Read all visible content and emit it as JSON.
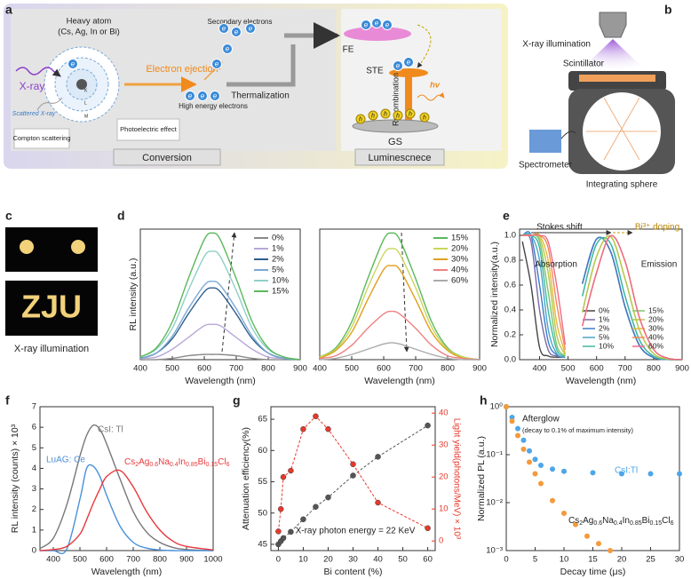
{
  "panel_labels": [
    "a",
    "b",
    "c",
    "d",
    "e",
    "f",
    "g",
    "h"
  ],
  "panel_a": {
    "heavy_atom": "Heavy atom",
    "heavy_atom_list": "(Cs, Ag, In or Bi)",
    "xray": "X-ray",
    "scattered": "Scattered X-ray",
    "compton": "Compton scattering",
    "photoelectric": "Photoelectric effect",
    "ejection": "Electron ejection",
    "high_energy": "High energy electrons",
    "secondary": "Secondary electrons",
    "thermalization": "Thermalization",
    "fe": "FE",
    "ste": "STE",
    "recombination": "Recombination",
    "hv": "hv",
    "gs": "GS",
    "conversion": "Conversion",
    "luminescence": "Luminescnece",
    "shells": [
      "K",
      "L",
      "M"
    ],
    "electron": "e",
    "hole": "h"
  },
  "panel_b": {
    "illumination": "X-ray illumination",
    "scintillator": "Scintillator",
    "spectrometer": "Spectrometer",
    "sphere": "Integrating sphere"
  },
  "panel_c": {
    "letters": "ZJU",
    "caption": "X-ray illumination"
  },
  "chart_data": [
    {
      "type": "line",
      "smooth": true,
      "xlabel": "Wavelength (nm)",
      "ylabel": "RL intensity (a.u.)",
      "xlim": [
        400,
        900
      ],
      "xticks": [
        400,
        500,
        600,
        700,
        800,
        900
      ],
      "ylim": [
        0,
        1
      ],
      "legend": "upper right",
      "x": [
        400,
        450,
        500,
        550,
        600,
        625,
        650,
        700,
        750,
        800,
        850,
        900
      ],
      "series": [
        {
          "name": "0%",
          "color": "#8a8a8a",
          "values": [
            0.0,
            0.0,
            0.01,
            0.03,
            0.04,
            0.04,
            0.04,
            0.03,
            0.01,
            0.0,
            0.0,
            0.0
          ]
        },
        {
          "name": "1%",
          "color": "#b9a7d8",
          "values": [
            0.01,
            0.02,
            0.08,
            0.17,
            0.26,
            0.27,
            0.26,
            0.17,
            0.08,
            0.02,
            0.01,
            0.0
          ]
        },
        {
          "name": "2%",
          "color": "#2e5e8e",
          "values": [
            0.01,
            0.05,
            0.16,
            0.35,
            0.52,
            0.55,
            0.52,
            0.35,
            0.16,
            0.05,
            0.01,
            0.0
          ]
        },
        {
          "name": "5%",
          "color": "#7ba7d4",
          "values": [
            0.01,
            0.05,
            0.18,
            0.39,
            0.57,
            0.6,
            0.57,
            0.39,
            0.18,
            0.05,
            0.01,
            0.0
          ]
        },
        {
          "name": "10%",
          "color": "#8fd0c8",
          "values": [
            0.02,
            0.08,
            0.24,
            0.53,
            0.79,
            0.83,
            0.79,
            0.53,
            0.24,
            0.08,
            0.02,
            0.0
          ]
        },
        {
          "name": "15%",
          "color": "#5cb85c",
          "values": [
            0.02,
            0.09,
            0.29,
            0.62,
            0.92,
            0.97,
            0.92,
            0.62,
            0.29,
            0.09,
            0.02,
            0.0
          ]
        }
      ]
    },
    {
      "type": "line",
      "smooth": true,
      "xlabel": "Wavelength (nm)",
      "xlim": [
        400,
        900
      ],
      "xticks": [
        400,
        500,
        600,
        700,
        800,
        900
      ],
      "ylim": [
        0,
        1
      ],
      "legend": "upper right",
      "x": [
        400,
        450,
        500,
        550,
        600,
        625,
        650,
        700,
        750,
        800,
        850,
        900
      ],
      "series": [
        {
          "name": "15%",
          "color": "#5cb85c",
          "values": [
            0.02,
            0.09,
            0.29,
            0.62,
            0.92,
            0.97,
            0.92,
            0.62,
            0.29,
            0.09,
            0.02,
            0.0
          ]
        },
        {
          "name": "20%",
          "color": "#c8d65a",
          "values": [
            0.02,
            0.08,
            0.25,
            0.55,
            0.81,
            0.85,
            0.81,
            0.55,
            0.25,
            0.08,
            0.02,
            0.0
          ]
        },
        {
          "name": "30%",
          "color": "#e0a020",
          "values": [
            0.01,
            0.07,
            0.21,
            0.46,
            0.69,
            0.72,
            0.69,
            0.46,
            0.21,
            0.07,
            0.01,
            0.0
          ]
        },
        {
          "name": "40%",
          "color": "#f08080",
          "values": [
            0.01,
            0.03,
            0.11,
            0.24,
            0.35,
            0.37,
            0.35,
            0.24,
            0.11,
            0.03,
            0.01,
            0.0
          ]
        },
        {
          "name": "60%",
          "color": "#aaaaaa",
          "values": [
            0.0,
            0.01,
            0.04,
            0.08,
            0.12,
            0.13,
            0.12,
            0.08,
            0.04,
            0.01,
            0.0,
            0.0
          ]
        }
      ]
    },
    {
      "type": "line",
      "smooth": true,
      "xlabel": "Wavelength (nm)",
      "ylabel": "Normalized intensity(a.u.)",
      "xlim": [
        330,
        900
      ],
      "xticks": [
        400,
        500,
        600,
        700,
        800,
        900
      ],
      "ylim": [
        0,
        1.05
      ],
      "yticks": [
        {
          "value": 0,
          "label": "0.0"
        },
        {
          "value": 0.2,
          "label": "0.2"
        },
        {
          "value": 0.4,
          "label": "0.4"
        },
        {
          "value": 0.6,
          "label": "0.6"
        },
        {
          "value": 0.8,
          "label": "0.8"
        },
        {
          "value": 1,
          "label": "1.0"
        }
      ],
      "legend": "lower right",
      "annotations": [
        "Stokes shift",
        "Bi³⁺ doping",
        "Absorption",
        "Emission"
      ],
      "x": [
        340,
        370,
        400,
        430,
        460,
        490,
        520,
        550,
        600,
        650,
        700,
        750,
        800,
        850,
        900
      ],
      "series": [
        {
          "name": "0%",
          "color": "#444444",
          "values": [
            0.95,
            0.6,
            0.1,
            0.03,
            0.02,
            0.02,
            null,
            0.61,
            0.97,
            0.865,
            0.425,
            0.116,
            0.017,
            0.001,
            0
          ]
        },
        {
          "name": "1%",
          "color": "#7a6aa8",
          "values": [
            1,
            0.95,
            0.4,
            0.08,
            0.03,
            0.02,
            null,
            0.61,
            0.97,
            0.865,
            0.425,
            0.116,
            0.017,
            0.001,
            0
          ]
        },
        {
          "name": "2%",
          "color": "#3d7cc9",
          "values": [
            1,
            1,
            0.6,
            0.15,
            0.04,
            0.02,
            null,
            0.61,
            0.97,
            0.865,
            0.425,
            0.116,
            0.017,
            0.001,
            0
          ]
        },
        {
          "name": "5%",
          "color": "#4aa6c8",
          "values": [
            1,
            1,
            0.8,
            0.25,
            0.05,
            0.02,
            null,
            0.51,
            0.93,
            0.93,
            0.51,
            0.16,
            0.027,
            0.003,
            0
          ]
        },
        {
          "name": "10%",
          "color": "#3fb8a0",
          "values": [
            1,
            1,
            0.9,
            0.4,
            0.08,
            0.03,
            null,
            0.51,
            0.93,
            0.93,
            0.51,
            0.16,
            0.027,
            0.003,
            0
          ]
        },
        {
          "name": "15%",
          "color": "#7cc46a",
          "values": [
            1,
            1,
            0.95,
            0.55,
            0.12,
            0.03,
            null,
            0.38,
            0.83,
            0.99,
            0.65,
            0.24,
            0.048,
            0.006,
            0
          ]
        },
        {
          "name": "20%",
          "color": "#b8c84a",
          "values": [
            1,
            1,
            0.98,
            0.7,
            0.2,
            0.04,
            null,
            0.38,
            0.83,
            0.99,
            0.65,
            0.24,
            0.048,
            0.006,
            0
          ]
        },
        {
          "name": "30%",
          "color": "#e8b840",
          "values": [
            1,
            1,
            1,
            0.8,
            0.3,
            0.05,
            null,
            0.27,
            0.7,
            0.997,
            0.79,
            0.34,
            0.083,
            0.011,
            0.001
          ]
        },
        {
          "name": "40%",
          "color": "#f08a5a",
          "values": [
            1,
            1,
            1,
            0.9,
            0.45,
            0.08,
            null,
            0.27,
            0.7,
            0.997,
            0.79,
            0.34,
            0.083,
            0.011,
            0.001
          ]
        },
        {
          "name": "60%",
          "color": "#f06a8a",
          "values": [
            1,
            1,
            1,
            0.95,
            0.6,
            0.12,
            null,
            0.27,
            0.7,
            0.997,
            0.79,
            0.34,
            0.083,
            0.011,
            0.001
          ]
        }
      ]
    },
    {
      "type": "line",
      "smooth": true,
      "xlabel": "Wavelength (nm)",
      "ylabel": "RL intensity (counts) × 10³",
      "xlim": [
        350,
        1000
      ],
      "xticks": [
        400,
        500,
        600,
        700,
        800,
        900,
        1000
      ],
      "ylim": [
        0,
        7
      ],
      "yticks": [
        0,
        1,
        2,
        3,
        4,
        5,
        6,
        7
      ],
      "legend": "inline",
      "x": [
        350,
        400,
        450,
        500,
        525,
        550,
        575,
        600,
        650,
        700,
        750,
        800,
        850,
        900,
        1000
      ],
      "series": [
        {
          "name": "CsI: Tl",
          "color": "#777777",
          "values": [
            0.1,
            0.6,
            2.2,
            4.6,
            5.6,
            6.1,
            5.9,
            5.2,
            3.5,
            1.9,
            0.9,
            0.4,
            0.15,
            0.05,
            0
          ]
        },
        {
          "name": "LuAG: Ce",
          "color": "#4a90d9",
          "values": [
            0,
            0,
            0.05,
            2.5,
            4.0,
            4.1,
            3.6,
            2.7,
            1.2,
            0.4,
            0.12,
            0.03,
            0,
            0,
            0
          ]
        },
        {
          "name": "Cs2Ag0.6Na0.4In0.85Bi0.15Cl6",
          "color": "#e8383c",
          "values": [
            0,
            0.05,
            0.2,
            0.8,
            1.5,
            2.3,
            3.0,
            3.6,
            3.9,
            3.1,
            1.9,
            1.0,
            0.45,
            0.2,
            0.03
          ]
        }
      ]
    },
    {
      "type": "line",
      "markers": true,
      "dashed": true,
      "xlabel": "Bi content (%)",
      "ylabel": "Attenuation efficiency(%)",
      "y2label": "Light yield(photons/MeV) × 10³",
      "xlim": [
        -3,
        63
      ],
      "xticks": [
        0,
        10,
        20,
        30,
        40,
        50,
        60
      ],
      "ylim": [
        44,
        67
      ],
      "yticks": [
        45,
        50,
        55,
        60,
        65
      ],
      "y2lim": [
        -3,
        42
      ],
      "y2ticks": [
        0,
        10,
        20,
        30,
        40
      ],
      "annotations": [
        "X-ray photon energy = 22 KeV"
      ],
      "x": [
        0,
        1,
        2,
        5,
        10,
        15,
        20,
        30,
        40,
        60
      ],
      "series": [
        {
          "color": "#555555",
          "values": [
            45,
            45.5,
            46,
            47,
            49,
            51,
            52.5,
            56,
            59,
            64
          ]
        },
        {
          "color": "#e8382c",
          "axis": "y2",
          "values": [
            3,
            10,
            20,
            22,
            35,
            39,
            35,
            24,
            12,
            4
          ]
        }
      ]
    },
    {
      "type": "scatter",
      "log_y": true,
      "xlabel": "Decay time (μs)",
      "ylabel": "Normalized PL (a.u.)",
      "xlim": [
        0,
        30
      ],
      "xticks": [
        0,
        5,
        10,
        15,
        20,
        25,
        30
      ],
      "ylim": [
        0.001,
        1
      ],
      "yticks": [
        {
          "value": 0.001,
          "label": "10⁻³"
        },
        {
          "value": 0.01,
          "label": "10⁻²"
        },
        {
          "value": 0.1,
          "label": "10⁻¹"
        },
        {
          "value": 1,
          "label": "10⁰"
        }
      ],
      "legend": "inline",
      "annotations": [
        "Afterglow",
        "(decay to 0.1% of  maximum intensity)"
      ],
      "series": [
        {
          "name": "CsI:Tl",
          "color": "#4da6e8",
          "x": [
            0,
            1,
            2,
            3,
            4,
            5,
            6,
            8,
            10,
            15,
            20,
            25,
            30
          ],
          "values": [
            1,
            0.6,
            0.35,
            0.2,
            0.12,
            0.08,
            0.06,
            0.05,
            0.045,
            0.042,
            0.04,
            0.04,
            0.04
          ]
        },
        {
          "name": "Cs2Ag0.6Na0.4In0.85Bi0.15Cl6",
          "color": "#f39a3c",
          "x": [
            0,
            1,
            2,
            3,
            4,
            5,
            6,
            8,
            10,
            12,
            14,
            16,
            18
          ],
          "values": [
            1,
            0.5,
            0.25,
            0.13,
            0.07,
            0.04,
            0.025,
            0.011,
            0.006,
            0.0035,
            0.002,
            0.0014,
            0.001
          ]
        }
      ]
    }
  ]
}
